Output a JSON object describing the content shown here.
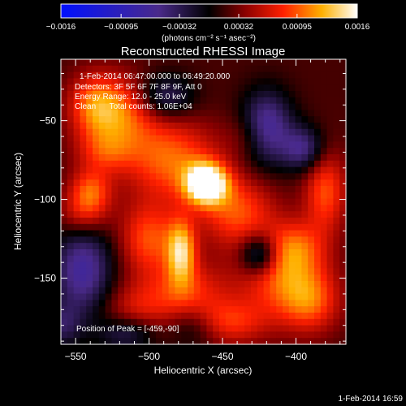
{
  "chart_data": {
    "type": "heatmap",
    "title": "Reconstructed RHESSI Image",
    "xlabel": "Heliocentric X (arcsec)",
    "ylabel": "Heliocentric Y (arcsec)",
    "xlim": [
      -560,
      -366
    ],
    "ylim": [
      -192,
      -11
    ],
    "x_ticks": [
      -550,
      -500,
      -450,
      -400
    ],
    "y_ticks": [
      -50,
      -100,
      -150
    ],
    "colorbar": {
      "min": -0.0016,
      "max": 0.0016,
      "ticks": [
        "-0.0016",
        "-0.00095",
        "-0.00032",
        "0.00032",
        "0.00095",
        "0.0016"
      ],
      "unit_label": "(photons cm⁻² s⁻¹ asec⁻²)"
    },
    "info_lines": [
      "1-Feb-2014 06:47:00.000 to 06:49:20.000",
      "Detectors: 3F 5F 6F 7F 8F 9F, Att 0",
      "Energy Range: 12.0 - 25.0 keV",
      "Clean      Total counts: 1.06E+04"
    ],
    "peak_label": "Position of Peak = [-459,-90]",
    "peak": [
      -459,
      -90
    ],
    "timestamp": "1-Feb-2014 16:59",
    "sources": [
      {
        "x": -461,
        "y": -90,
        "amp": 1.0,
        "sx": 10,
        "sy": 9
      },
      {
        "x": -478,
        "y": -133,
        "amp": 0.65,
        "sx": 7,
        "sy": 14
      },
      {
        "x": -485,
        "y": -75,
        "amp": 0.5,
        "sx": 22,
        "sy": 18
      },
      {
        "x": -440,
        "y": -108,
        "amp": 0.45,
        "sx": 18,
        "sy": 16
      },
      {
        "x": -520,
        "y": -45,
        "amp": 0.5,
        "sx": 18,
        "sy": 16
      },
      {
        "x": -538,
        "y": -40,
        "amp": 0.35,
        "sx": 12,
        "sy": 14
      },
      {
        "x": -500,
        "y": -125,
        "amp": 0.45,
        "sx": 14,
        "sy": 16
      },
      {
        "x": -475,
        "y": -160,
        "amp": 0.4,
        "sx": 20,
        "sy": 14
      },
      {
        "x": -410,
        "y": -150,
        "amp": 0.45,
        "sx": 20,
        "sy": 18
      },
      {
        "x": -400,
        "y": -130,
        "amp": 0.35,
        "sx": 14,
        "sy": 12
      },
      {
        "x": -380,
        "y": -95,
        "amp": 0.45,
        "sx": 10,
        "sy": 18
      },
      {
        "x": -390,
        "y": -165,
        "amp": 0.4,
        "sx": 14,
        "sy": 14
      },
      {
        "x": -540,
        "y": -95,
        "amp": 0.45,
        "sx": 10,
        "sy": 10
      },
      {
        "x": -545,
        "y": -110,
        "amp": 0.3,
        "sx": 12,
        "sy": 10
      },
      {
        "x": -445,
        "y": -178,
        "amp": 0.35,
        "sx": 18,
        "sy": 10
      },
      {
        "x": -510,
        "y": -170,
        "amp": 0.25,
        "sx": 16,
        "sy": 12
      },
      {
        "x": -430,
        "y": -60,
        "amp": 0.2,
        "sx": 12,
        "sy": 10
      },
      {
        "x": -530,
        "y": -70,
        "amp": 0.3,
        "sx": 14,
        "sy": 10
      },
      {
        "x": -545,
        "y": -145,
        "amp": -0.55,
        "sx": 14,
        "sy": 20
      },
      {
        "x": -425,
        "y": -135,
        "amp": -0.55,
        "sx": 9,
        "sy": 9
      },
      {
        "x": -420,
        "y": -55,
        "amp": -0.6,
        "sx": 12,
        "sy": 16
      },
      {
        "x": -395,
        "y": -68,
        "amp": -0.45,
        "sx": 10,
        "sy": 10
      },
      {
        "x": -490,
        "y": -35,
        "amp": -0.4,
        "sx": 14,
        "sy": 10
      },
      {
        "x": -515,
        "y": -185,
        "amp": -0.35,
        "sx": 14,
        "sy": 8
      },
      {
        "x": -470,
        "y": -180,
        "amp": -0.25,
        "sx": 12,
        "sy": 10
      },
      {
        "x": -560,
        "y": -180,
        "amp": -0.3,
        "sx": 10,
        "sy": 10
      }
    ],
    "background_level": 0.12
  }
}
